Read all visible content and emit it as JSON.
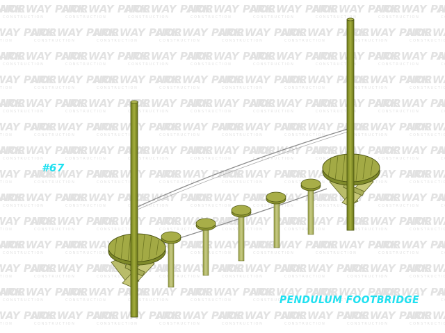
{
  "watermark": {
    "brand": "NORWAY PARK",
    "tagline": "CONSTRUCTION"
  },
  "label": {
    "model_number": "#67",
    "product_name": "PENDULUM FOOTBRIDGE"
  },
  "colors": {
    "label": "#1ee0f0",
    "wood_post": "#8a9a2a",
    "wood_deck": "#9aa13a",
    "rope": "#8a8a8a",
    "watermark": "#e2e2e2"
  }
}
